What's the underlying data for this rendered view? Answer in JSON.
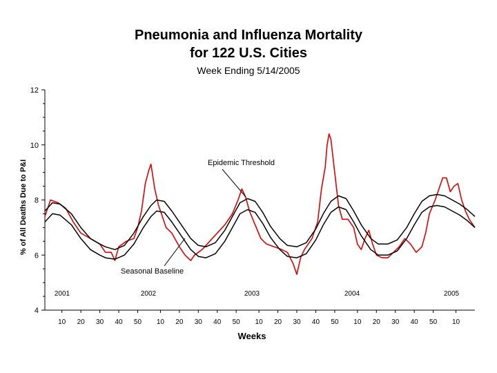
{
  "chart_data": {
    "type": "line",
    "title": "Pneumonia and Influenza Mortality",
    "title_line2": "for 122 U.S. Cities",
    "subtitle": "Week Ending 5/14/2005",
    "xlabel": "Weeks",
    "ylabel": "% of All Deaths Due to P&I",
    "ylim": [
      4,
      12
    ],
    "yticks": [
      "4",
      "6",
      "8",
      "10",
      "12"
    ],
    "xticks": [
      "10",
      "20",
      "30",
      "40",
      "50",
      "10",
      "20",
      "30",
      "40",
      "50",
      "10",
      "20",
      "30",
      "40",
      "50",
      "10",
      "20",
      "30",
      "40",
      "50",
      "10"
    ],
    "year_labels": [
      "2001",
      "2002",
      "2003",
      "2004",
      "2005"
    ],
    "annotations": [
      "Epidemic Threshold",
      "Seasonal Baseline"
    ],
    "colors": {
      "observed": "#e00000",
      "threshold": "#000000",
      "baseline": "#000000",
      "axis": "#000000"
    },
    "series": [
      {
        "key": "observed",
        "weeks_start": 1,
        "weeks_end": 228,
        "points": [
          [
            1,
            7.4
          ],
          [
            4,
            8.0
          ],
          [
            8,
            7.9
          ],
          [
            12,
            7.7
          ],
          [
            16,
            7.2
          ],
          [
            20,
            6.8
          ],
          [
            25,
            6.6
          ],
          [
            30,
            6.4
          ],
          [
            33,
            6.1
          ],
          [
            36,
            6.1
          ],
          [
            38,
            5.8
          ],
          [
            40,
            6.3
          ],
          [
            44,
            6.5
          ],
          [
            48,
            6.6
          ],
          [
            50,
            7.0
          ],
          [
            52,
            7.6
          ],
          [
            54,
            8.6
          ],
          [
            56,
            9.1
          ],
          [
            57,
            9.3
          ],
          [
            59,
            8.4
          ],
          [
            61,
            7.8
          ],
          [
            63,
            7.4
          ],
          [
            65,
            7.0
          ],
          [
            68,
            6.8
          ],
          [
            72,
            6.3
          ],
          [
            75,
            6.0
          ],
          [
            78,
            5.8
          ],
          [
            80,
            6.0
          ],
          [
            84,
            6.2
          ],
          [
            88,
            6.5
          ],
          [
            92,
            6.8
          ],
          [
            96,
            7.1
          ],
          [
            100,
            7.5
          ],
          [
            103,
            8.0
          ],
          [
            105,
            8.4
          ],
          [
            107,
            8.1
          ],
          [
            109,
            7.6
          ],
          [
            112,
            7.1
          ],
          [
            115,
            6.6
          ],
          [
            118,
            6.4
          ],
          [
            122,
            6.3
          ],
          [
            126,
            6.2
          ],
          [
            129,
            6.1
          ],
          [
            132,
            5.7
          ],
          [
            134,
            5.3
          ],
          [
            136,
            5.9
          ],
          [
            138,
            6.2
          ],
          [
            142,
            6.6
          ],
          [
            145,
            7.2
          ],
          [
            147,
            8.4
          ],
          [
            149,
            9.2
          ],
          [
            150,
            10.0
          ],
          [
            151,
            10.4
          ],
          [
            152,
            10.2
          ],
          [
            154,
            9.0
          ],
          [
            156,
            7.8
          ],
          [
            158,
            7.3
          ],
          [
            161,
            7.3
          ],
          [
            164,
            7.0
          ],
          [
            166,
            6.4
          ],
          [
            168,
            6.2
          ],
          [
            170,
            6.6
          ],
          [
            172,
            6.9
          ],
          [
            174,
            6.4
          ],
          [
            176,
            6.0
          ],
          [
            179,
            5.9
          ],
          [
            182,
            5.9
          ],
          [
            185,
            6.1
          ],
          [
            188,
            6.3
          ],
          [
            191,
            6.6
          ],
          [
            194,
            6.4
          ],
          [
            197,
            6.1
          ],
          [
            200,
            6.3
          ],
          [
            202,
            6.8
          ],
          [
            204,
            7.5
          ],
          [
            207,
            8.0
          ],
          [
            209,
            8.4
          ],
          [
            211,
            8.8
          ],
          [
            213,
            8.8
          ],
          [
            215,
            8.3
          ],
          [
            217,
            8.5
          ],
          [
            219,
            8.6
          ],
          [
            221,
            8.0
          ],
          [
            223,
            7.6
          ],
          [
            225,
            7.3
          ],
          [
            227,
            7.1
          ],
          [
            228,
            7.0
          ]
        ]
      },
      {
        "key": "threshold",
        "points": [
          [
            1,
            7.6
          ],
          [
            5,
            7.9
          ],
          [
            9,
            7.85
          ],
          [
            15,
            7.5
          ],
          [
            20,
            7.0
          ],
          [
            25,
            6.6
          ],
          [
            30,
            6.4
          ],
          [
            33,
            6.3
          ],
          [
            38,
            6.2
          ],
          [
            43,
            6.35
          ],
          [
            48,
            6.8
          ],
          [
            53,
            7.4
          ],
          [
            57,
            7.8
          ],
          [
            60,
            8.0
          ],
          [
            64,
            7.95
          ],
          [
            68,
            7.6
          ],
          [
            73,
            7.1
          ],
          [
            78,
            6.6
          ],
          [
            82,
            6.35
          ],
          [
            86,
            6.3
          ],
          [
            91,
            6.45
          ],
          [
            96,
            6.9
          ],
          [
            100,
            7.4
          ],
          [
            104,
            7.9
          ],
          [
            108,
            8.05
          ],
          [
            112,
            7.95
          ],
          [
            116,
            7.55
          ],
          [
            120,
            7.05
          ],
          [
            125,
            6.6
          ],
          [
            129,
            6.35
          ],
          [
            134,
            6.3
          ],
          [
            139,
            6.45
          ],
          [
            144,
            6.95
          ],
          [
            148,
            7.5
          ],
          [
            152,
            7.95
          ],
          [
            156,
            8.15
          ],
          [
            160,
            8.05
          ],
          [
            164,
            7.6
          ],
          [
            168,
            7.1
          ],
          [
            173,
            6.6
          ],
          [
            177,
            6.4
          ],
          [
            182,
            6.4
          ],
          [
            187,
            6.55
          ],
          [
            192,
            7.0
          ],
          [
            196,
            7.5
          ],
          [
            200,
            7.95
          ],
          [
            204,
            8.15
          ],
          [
            208,
            8.2
          ],
          [
            212,
            8.15
          ],
          [
            216,
            8.0
          ],
          [
            220,
            7.85
          ],
          [
            224,
            7.65
          ],
          [
            228,
            7.4
          ]
        ]
      },
      {
        "key": "baseline",
        "points": [
          [
            1,
            7.2
          ],
          [
            5,
            7.5
          ],
          [
            9,
            7.45
          ],
          [
            15,
            7.1
          ],
          [
            20,
            6.6
          ],
          [
            25,
            6.2
          ],
          [
            30,
            6.0
          ],
          [
            33,
            5.9
          ],
          [
            38,
            5.85
          ],
          [
            43,
            6.0
          ],
          [
            48,
            6.4
          ],
          [
            53,
            7.0
          ],
          [
            57,
            7.4
          ],
          [
            60,
            7.6
          ],
          [
            64,
            7.55
          ],
          [
            68,
            7.2
          ],
          [
            73,
            6.7
          ],
          [
            78,
            6.2
          ],
          [
            82,
            5.95
          ],
          [
            86,
            5.9
          ],
          [
            91,
            6.05
          ],
          [
            96,
            6.5
          ],
          [
            100,
            7.0
          ],
          [
            104,
            7.5
          ],
          [
            108,
            7.65
          ],
          [
            112,
            7.55
          ],
          [
            116,
            7.15
          ],
          [
            120,
            6.65
          ],
          [
            125,
            6.2
          ],
          [
            129,
            5.95
          ],
          [
            134,
            5.9
          ],
          [
            139,
            6.05
          ],
          [
            144,
            6.55
          ],
          [
            148,
            7.1
          ],
          [
            152,
            7.55
          ],
          [
            156,
            7.75
          ],
          [
            160,
            7.65
          ],
          [
            164,
            7.2
          ],
          [
            168,
            6.7
          ],
          [
            173,
            6.2
          ],
          [
            177,
            6.0
          ],
          [
            182,
            6.0
          ],
          [
            187,
            6.15
          ],
          [
            192,
            6.6
          ],
          [
            196,
            7.1
          ],
          [
            200,
            7.55
          ],
          [
            204,
            7.75
          ],
          [
            208,
            7.8
          ],
          [
            212,
            7.75
          ],
          [
            216,
            7.6
          ],
          [
            220,
            7.45
          ],
          [
            224,
            7.25
          ],
          [
            228,
            7.0
          ]
        ]
      }
    ]
  }
}
